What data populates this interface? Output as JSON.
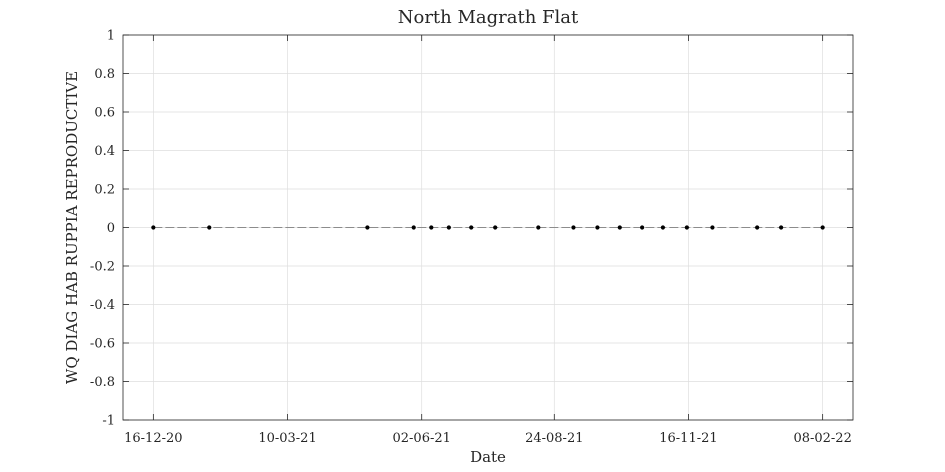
{
  "chart_data": {
    "type": "line",
    "title": "North Magrath Flat",
    "xlabel": "Date",
    "ylabel": "WQ DIAG HAB RUPPIA REPRODUCTIVE",
    "x_tick_labels": [
      "16-12-20",
      "10-03-21",
      "02-06-21",
      "24-08-21",
      "16-11-21",
      "08-02-22"
    ],
    "x_tick_dates": [
      "2020-12-16",
      "2021-03-10",
      "2021-06-02",
      "2021-08-24",
      "2021-11-16",
      "2022-02-08"
    ],
    "xlim": [
      "2020-11-27",
      "2022-02-27"
    ],
    "y_tick_labels": [
      "1",
      "0.8",
      "0.6",
      "0.4",
      "0.2",
      "0",
      "-0.2",
      "-0.4",
      "-0.6",
      "-0.8",
      "-1"
    ],
    "ylim": [
      -1,
      1
    ],
    "grid": true,
    "series": [
      {
        "x": [
          "2020-12-16",
          "2021-01-20",
          "2021-04-29",
          "2021-05-28",
          "2021-06-08",
          "2021-06-19",
          "2021-07-03",
          "2021-07-18",
          "2021-08-14",
          "2021-09-05",
          "2021-09-20",
          "2021-10-04",
          "2021-10-18",
          "2021-10-31",
          "2021-11-15",
          "2021-12-01",
          "2021-12-29",
          "2022-01-13",
          "2022-02-08"
        ],
        "y": [
          0,
          0,
          0,
          0,
          0,
          0,
          0,
          0,
          0,
          0,
          0,
          0,
          0,
          0,
          0,
          0,
          0,
          0,
          0
        ],
        "color": "#000000"
      }
    ]
  }
}
